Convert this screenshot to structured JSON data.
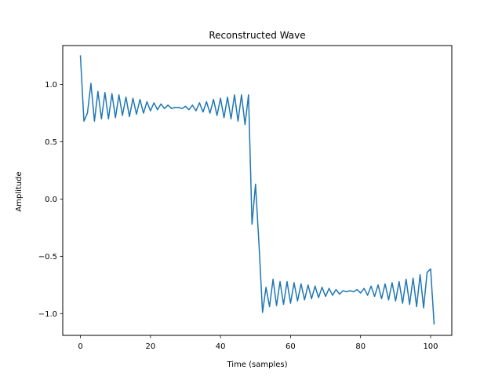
{
  "chart_data": {
    "type": "line",
    "title": "Reconstructed Wave",
    "xlabel": "Time (samples)",
    "ylabel": "Amplitude",
    "xlim": [
      -5.05,
      106.05
    ],
    "ylim": [
      -1.19,
      1.34
    ],
    "xticks": [
      0,
      20,
      40,
      60,
      80,
      100
    ],
    "yticks": [
      -1.0,
      -0.5,
      0.0,
      0.5,
      1.0
    ],
    "xtick_labels": [
      "0",
      "20",
      "40",
      "60",
      "80",
      "100"
    ],
    "ytick_labels": [
      "−1.0",
      "−0.5",
      "0.0",
      "0.5",
      "1.0"
    ],
    "grid": false,
    "series": [
      {
        "color": "#1f77b4",
        "x": [
          0,
          1,
          2,
          3,
          4,
          5,
          6,
          7,
          8,
          9,
          10,
          11,
          12,
          13,
          14,
          15,
          16,
          17,
          18,
          19,
          20,
          21,
          22,
          23,
          24,
          25,
          26,
          27,
          28,
          29,
          30,
          31,
          32,
          33,
          34,
          35,
          36,
          37,
          38,
          39,
          40,
          41,
          42,
          43,
          44,
          45,
          46,
          47,
          48,
          49,
          50,
          51,
          52,
          53,
          54,
          55,
          56,
          57,
          58,
          59,
          60,
          61,
          62,
          63,
          64,
          65,
          66,
          67,
          68,
          69,
          70,
          71,
          72,
          73,
          74,
          75,
          76,
          77,
          78,
          79,
          80,
          81,
          82,
          83,
          84,
          85,
          86,
          87,
          88,
          89,
          90,
          91,
          92,
          93,
          94,
          95,
          96,
          97,
          98,
          99,
          100,
          101
        ],
        "values": [
          1.25,
          0.68,
          0.75,
          1.01,
          0.68,
          0.94,
          0.7,
          0.93,
          0.7,
          0.92,
          0.71,
          0.91,
          0.73,
          0.89,
          0.72,
          0.88,
          0.74,
          0.87,
          0.75,
          0.85,
          0.77,
          0.84,
          0.78,
          0.83,
          0.79,
          0.82,
          0.79,
          0.8,
          0.8,
          0.79,
          0.81,
          0.78,
          0.82,
          0.77,
          0.84,
          0.76,
          0.85,
          0.75,
          0.87,
          0.73,
          0.88,
          0.71,
          0.89,
          0.7,
          0.91,
          0.68,
          0.91,
          0.65,
          0.91,
          -0.22,
          0.13,
          -0.4,
          -0.99,
          -0.77,
          -0.94,
          -0.7,
          -0.93,
          -0.72,
          -0.92,
          -0.72,
          -0.91,
          -0.73,
          -0.89,
          -0.74,
          -0.88,
          -0.75,
          -0.87,
          -0.76,
          -0.86,
          -0.77,
          -0.85,
          -0.78,
          -0.84,
          -0.79,
          -0.83,
          -0.8,
          -0.81,
          -0.8,
          -0.81,
          -0.79,
          -0.82,
          -0.78,
          -0.84,
          -0.76,
          -0.85,
          -0.75,
          -0.87,
          -0.74,
          -0.88,
          -0.73,
          -0.89,
          -0.72,
          -0.91,
          -0.7,
          -0.92,
          -0.69,
          -0.94,
          -0.66,
          -0.95,
          -0.64,
          -0.61,
          -1.09
        ]
      }
    ]
  }
}
